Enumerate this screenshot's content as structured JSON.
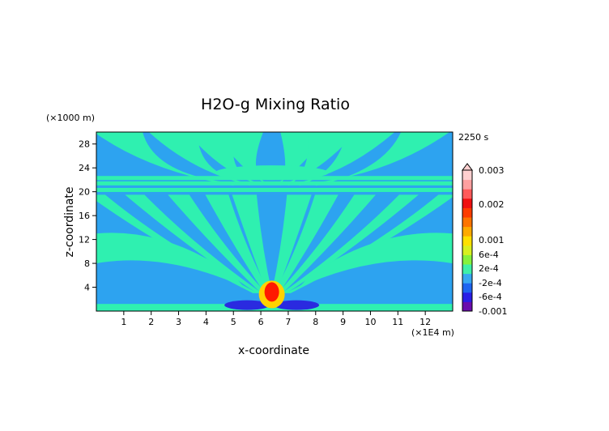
{
  "chart_data": {
    "type": "heatmap",
    "title": "H2O-g Mixing Ratio",
    "xlabel": "x-coordinate",
    "ylabel": "z-coordinate",
    "x_unit": "(×1E4 m)",
    "y_unit": "(×1000 m)",
    "time_label": "2250 s",
    "xlim": [
      0,
      13
    ],
    "ylim": [
      0,
      30
    ],
    "x_ticks": [
      "1",
      "2",
      "3",
      "4",
      "5",
      "6",
      "7",
      "8",
      "9",
      "10",
      "11",
      "12"
    ],
    "y_ticks": [
      "4",
      "8",
      "12",
      "16",
      "20",
      "24",
      "28"
    ],
    "colorbar": {
      "labels": [
        "0.003",
        "0.002",
        "0.001",
        "6e-4",
        "2e-4",
        "-2e-4",
        "-6e-4",
        "-0.001"
      ],
      "colors": [
        "#6a0dad",
        "#2a1ee6",
        "#1e64f0",
        "#38a8f0",
        "#3ff0a8",
        "#86f23c",
        "#d8f020",
        "#ffe000",
        "#ffaa00",
        "#ff7400",
        "#ff3c00",
        "#f01010",
        "#ff5a5a",
        "#ffa0a0",
        "#ffd0d0"
      ]
    },
    "field_colors": {
      "background": "#2da3f0",
      "band": "#2ff0b0",
      "core": "#ff1a00",
      "core_edge": "#ffd200",
      "negative": "#2a2ae0"
    }
  }
}
